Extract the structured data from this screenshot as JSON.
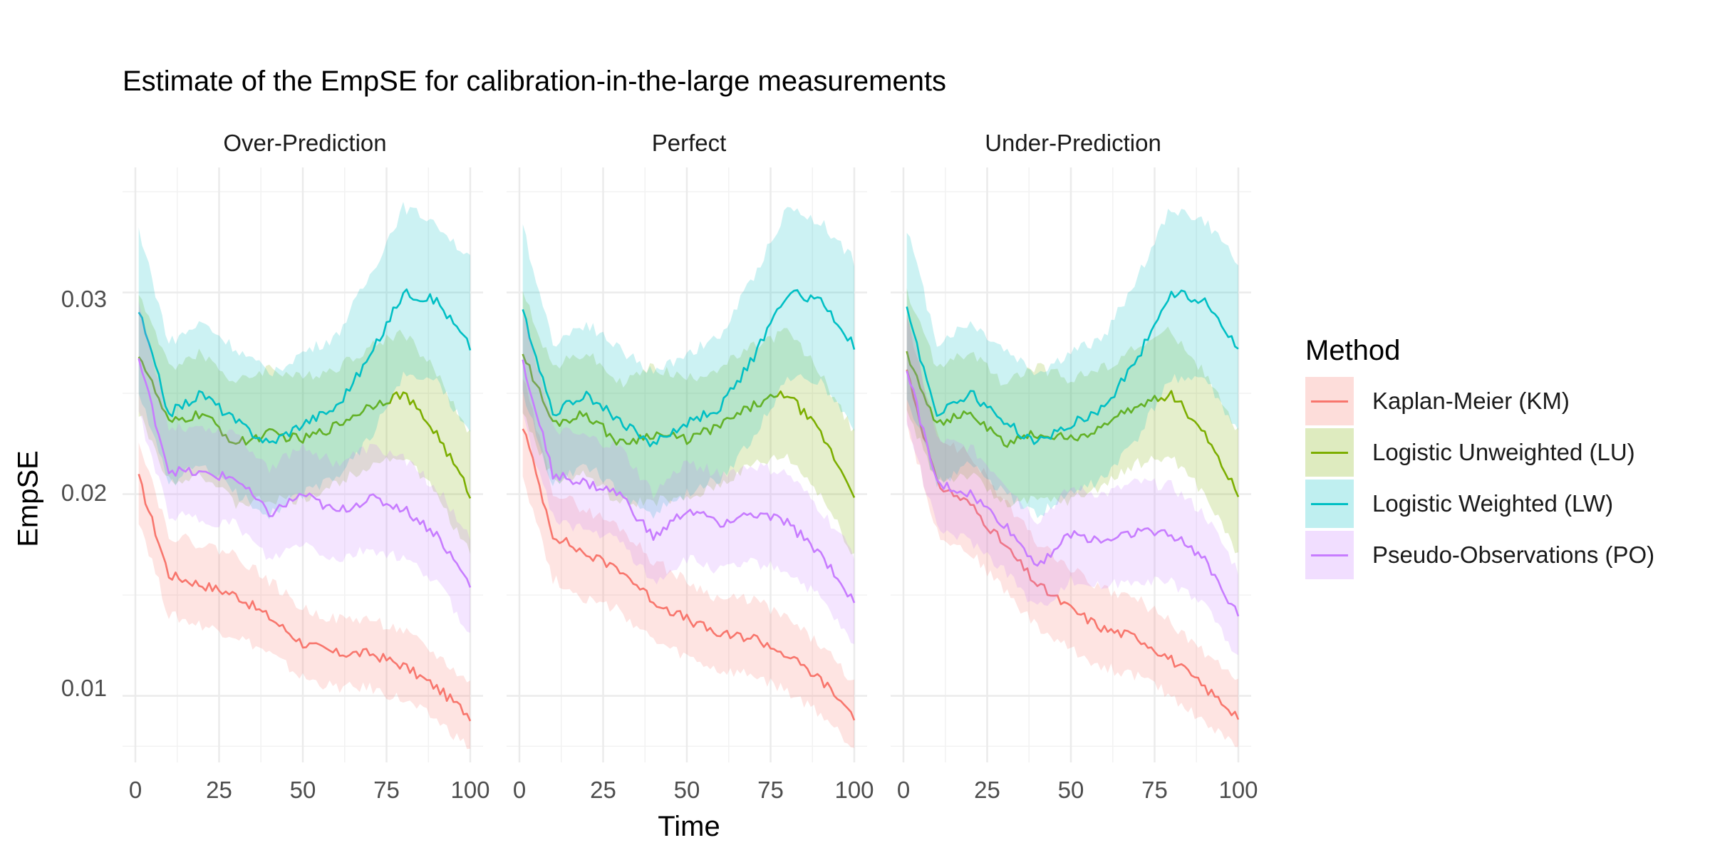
{
  "chart_data": {
    "type": "line",
    "title": "Estimate of the EmpSE for calibration-in-the-large measurements",
    "xlabel": "Time",
    "ylabel": "EmpSE",
    "xlim": [
      0,
      100
    ],
    "ylim": [
      0.0067,
      0.0362
    ],
    "x_ticks": [
      0,
      25,
      50,
      75,
      100
    ],
    "x_tick_labels": [
      "0",
      "25",
      "50",
      "75",
      "100"
    ],
    "y_ticks": [
      0.01,
      0.02,
      0.03
    ],
    "y_tick_labels": [
      "0.01",
      "0.02",
      "0.03"
    ],
    "grid": true,
    "legend_position": "right",
    "legend_title": "Method",
    "x": [
      1,
      10,
      20,
      30,
      40,
      50,
      60,
      70,
      80,
      90,
      100
    ],
    "panels": [
      {
        "name": "Over-Prediction",
        "series": [
          {
            "name": "Kaplan-Meier (KM)",
            "color": "#F8766D",
            "values": [
              0.0208,
              0.016,
              0.0155,
              0.015,
              0.0139,
              0.0126,
              0.0121,
              0.0121,
              0.0115,
              0.0104,
              0.009
            ],
            "lower": [
              0.0188,
              0.014,
              0.0135,
              0.013,
              0.0121,
              0.0109,
              0.0104,
              0.0104,
              0.0098,
              0.0088,
              0.0074
            ],
            "upper": [
              0.0228,
              0.018,
              0.0175,
              0.017,
              0.0157,
              0.0143,
              0.0138,
              0.0138,
              0.0132,
              0.012,
              0.0106
            ]
          },
          {
            "name": "Logistic Unweighted (LU)",
            "color": "#7CAE00",
            "values": [
              0.027,
              0.0235,
              0.024,
              0.0225,
              0.023,
              0.0227,
              0.0234,
              0.0244,
              0.025,
              0.023,
              0.02
            ],
            "lower": [
              0.024,
              0.0207,
              0.021,
              0.0195,
              0.0197,
              0.0197,
              0.0205,
              0.0215,
              0.0219,
              0.02,
              0.017
            ],
            "upper": [
              0.03,
              0.0263,
              0.027,
              0.0255,
              0.0263,
              0.0257,
              0.0263,
              0.0273,
              0.0281,
              0.026,
              0.023
            ]
          },
          {
            "name": "Logistic Weighted (LW)",
            "color": "#00BFC4",
            "values": [
              0.0291,
              0.024,
              0.025,
              0.0236,
              0.0225,
              0.0235,
              0.0243,
              0.0268,
              0.03,
              0.0296,
              0.0273
            ],
            "lower": [
              0.025,
              0.0205,
              0.0215,
              0.02,
              0.019,
              0.02,
              0.0208,
              0.0228,
              0.0258,
              0.0257,
              0.023
            ],
            "upper": [
              0.0332,
              0.0275,
              0.0285,
              0.0272,
              0.026,
              0.027,
              0.0278,
              0.0308,
              0.0342,
              0.0335,
              0.0316
            ]
          },
          {
            "name": "Pseudo-Observations (PO)",
            "color": "#C77CFF",
            "values": [
              0.0267,
              0.0212,
              0.021,
              0.0208,
              0.019,
              0.02,
              0.0191,
              0.0198,
              0.0193,
              0.018,
              0.0155
            ],
            "lower": [
              0.024,
              0.019,
              0.0187,
              0.0185,
              0.0167,
              0.0176,
              0.0167,
              0.0173,
              0.0168,
              0.0157,
              0.013
            ],
            "upper": [
              0.0294,
              0.0234,
              0.0233,
              0.0231,
              0.0213,
              0.0224,
              0.0215,
              0.0223,
              0.0218,
              0.0203,
              0.018
            ]
          }
        ]
      },
      {
        "name": "Perfect",
        "series": [
          {
            "name": "Kaplan-Meier (KM)",
            "color": "#F8766D",
            "values": [
              0.0234,
              0.018,
              0.017,
              0.0163,
              0.0147,
              0.0138,
              0.013,
              0.0129,
              0.012,
              0.0108,
              0.009
            ],
            "lower": [
              0.021,
              0.0158,
              0.0148,
              0.0142,
              0.0127,
              0.0119,
              0.0112,
              0.011,
              0.0102,
              0.0091,
              0.0074
            ],
            "upper": [
              0.0258,
              0.0202,
              0.0192,
              0.0184,
              0.0167,
              0.0157,
              0.0148,
              0.0148,
              0.0138,
              0.0125,
              0.0106
            ]
          },
          {
            "name": "Logistic Unweighted (LU)",
            "color": "#7CAE00",
            "values": [
              0.027,
              0.0235,
              0.024,
              0.0225,
              0.023,
              0.0227,
              0.0234,
              0.0244,
              0.025,
              0.023,
              0.02
            ],
            "lower": [
              0.024,
              0.0207,
              0.021,
              0.0195,
              0.0197,
              0.0197,
              0.0205,
              0.0215,
              0.0219,
              0.02,
              0.017
            ],
            "upper": [
              0.03,
              0.0263,
              0.027,
              0.0255,
              0.0263,
              0.0257,
              0.0263,
              0.0273,
              0.0281,
              0.026,
              0.023
            ]
          },
          {
            "name": "Logistic Weighted (LW)",
            "color": "#00BFC4",
            "values": [
              0.0291,
              0.024,
              0.025,
              0.0236,
              0.0225,
              0.0235,
              0.0243,
              0.0268,
              0.03,
              0.0296,
              0.0273
            ],
            "lower": [
              0.025,
              0.0205,
              0.0215,
              0.02,
              0.019,
              0.02,
              0.0208,
              0.0228,
              0.0258,
              0.0257,
              0.023
            ],
            "upper": [
              0.0332,
              0.0275,
              0.0285,
              0.0272,
              0.026,
              0.027,
              0.0278,
              0.0308,
              0.0342,
              0.0335,
              0.0316
            ]
          },
          {
            "name": "Pseudo-Observations (PO)",
            "color": "#C77CFF",
            "values": [
              0.0265,
              0.021,
              0.0205,
              0.02,
              0.0178,
              0.0192,
              0.0186,
              0.019,
              0.0186,
              0.017,
              0.0147
            ],
            "lower": [
              0.0238,
              0.0188,
              0.0182,
              0.0177,
              0.0156,
              0.0168,
              0.0162,
              0.0166,
              0.0162,
              0.0148,
              0.0124
            ],
            "upper": [
              0.0292,
              0.0232,
              0.0228,
              0.0223,
              0.02,
              0.0216,
              0.021,
              0.0214,
              0.021,
              0.0192,
              0.017
            ]
          }
        ]
      },
      {
        "name": "Under-Prediction",
        "series": [
          {
            "name": "Kaplan-Meier (KM)",
            "color": "#F8766D",
            "values": [
              0.0262,
              0.0205,
              0.0195,
              0.0175,
              0.0155,
              0.0143,
              0.0133,
              0.0129,
              0.0118,
              0.0104,
              0.009
            ],
            "lower": [
              0.0236,
              0.0181,
              0.0171,
              0.0153,
              0.0134,
              0.0123,
              0.0114,
              0.011,
              0.01,
              0.0087,
              0.0074
            ],
            "upper": [
              0.0288,
              0.0229,
              0.0219,
              0.0197,
              0.0176,
              0.0163,
              0.0152,
              0.0148,
              0.0136,
              0.0121,
              0.0106
            ]
          },
          {
            "name": "Logistic Unweighted (LU)",
            "color": "#7CAE00",
            "values": [
              0.027,
              0.0235,
              0.024,
              0.0225,
              0.023,
              0.0227,
              0.0234,
              0.0244,
              0.025,
              0.023,
              0.02
            ],
            "lower": [
              0.024,
              0.0207,
              0.021,
              0.0195,
              0.0197,
              0.0197,
              0.0205,
              0.0215,
              0.0219,
              0.02,
              0.017
            ],
            "upper": [
              0.03,
              0.0263,
              0.027,
              0.0255,
              0.0263,
              0.0257,
              0.0263,
              0.0273,
              0.0281,
              0.026,
              0.023
            ]
          },
          {
            "name": "Logistic Weighted (LW)",
            "color": "#00BFC4",
            "values": [
              0.0291,
              0.024,
              0.025,
              0.0236,
              0.0225,
              0.0235,
              0.0243,
              0.0268,
              0.03,
              0.0296,
              0.0273
            ],
            "lower": [
              0.025,
              0.0205,
              0.0215,
              0.02,
              0.019,
              0.02,
              0.0208,
              0.0228,
              0.0258,
              0.0257,
              0.023
            ],
            "upper": [
              0.0332,
              0.0275,
              0.0285,
              0.0272,
              0.026,
              0.027,
              0.0278,
              0.0308,
              0.0342,
              0.0335,
              0.0316
            ]
          },
          {
            "name": "Pseudo-Observations (PO)",
            "color": "#C77CFF",
            "values": [
              0.0263,
              0.0205,
              0.02,
              0.0185,
              0.0165,
              0.018,
              0.0177,
              0.0182,
              0.018,
              0.0168,
              0.014
            ],
            "lower": [
              0.0236,
              0.0183,
              0.0177,
              0.0163,
              0.0143,
              0.0157,
              0.0154,
              0.0158,
              0.0156,
              0.0146,
              0.0118
            ],
            "upper": [
              0.029,
              0.0227,
              0.0223,
              0.0207,
              0.0187,
              0.0203,
              0.02,
              0.0206,
              0.0204,
              0.019,
              0.0162
            ]
          }
        ]
      }
    ]
  }
}
